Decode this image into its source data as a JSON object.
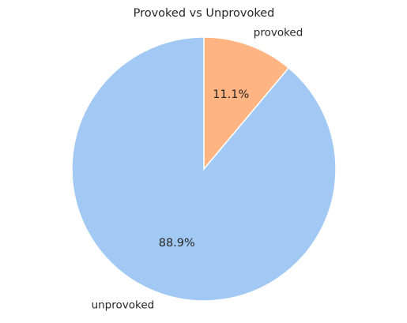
{
  "chart_data": {
    "type": "pie",
    "title": "Provoked vs Unprovoked",
    "slices": [
      {
        "label": "provoked",
        "value": 11.1,
        "pct_label": "11.1%",
        "color": "#FFB482"
      },
      {
        "label": "unprovoked",
        "value": 88.9,
        "pct_label": "88.9%",
        "color": "#A1C9F4"
      }
    ],
    "start_angle": 90,
    "direction": "clockwise",
    "legend": "none"
  }
}
